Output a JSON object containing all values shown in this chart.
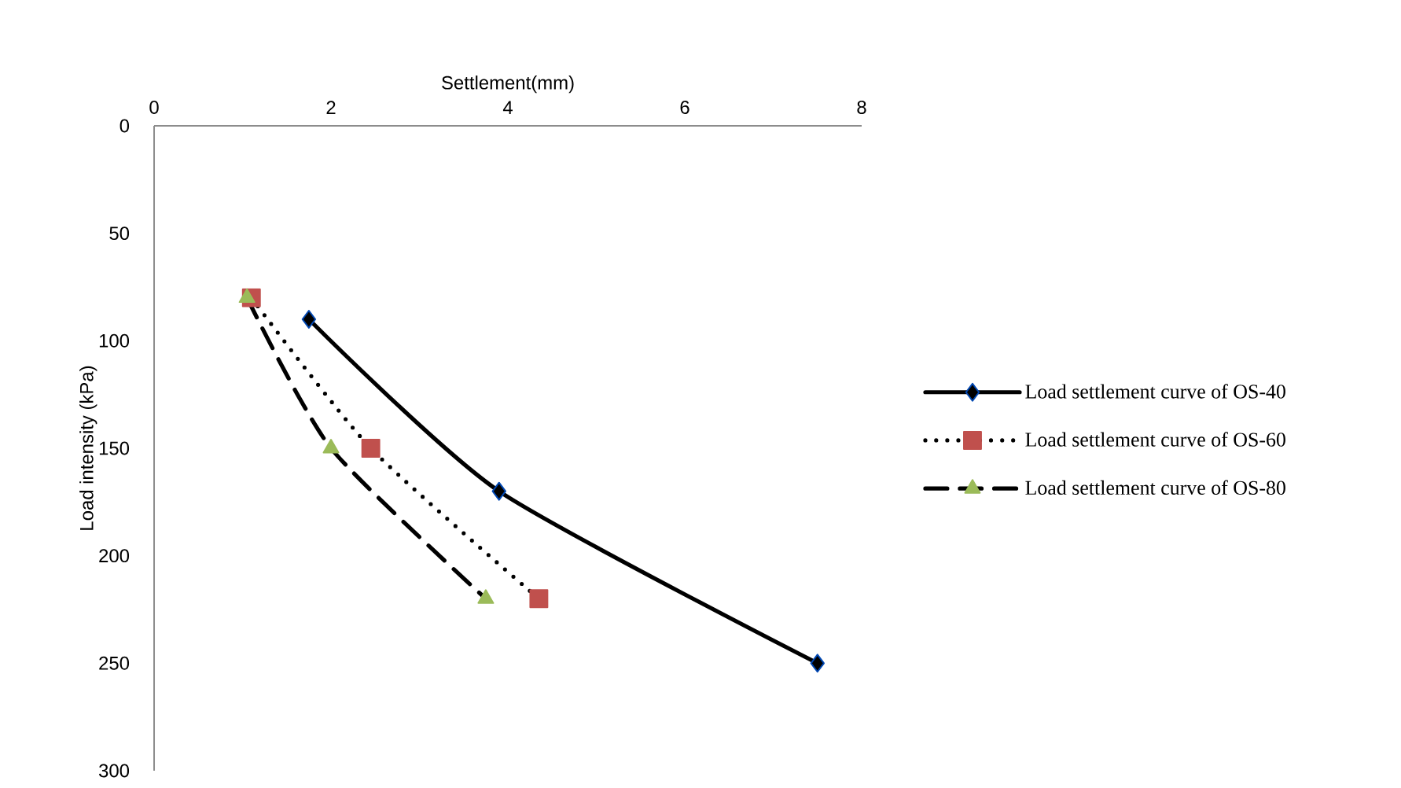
{
  "chart_data": {
    "type": "line",
    "xlabel": "Settlement(mm)",
    "ylabel": "Load intensity (kPa)",
    "xlim": [
      0,
      8
    ],
    "xticks": [
      0,
      2,
      4,
      6,
      8
    ],
    "ylim": [
      300,
      0
    ],
    "yticks": [
      0,
      50,
      100,
      150,
      200,
      250,
      300
    ],
    "legend": "right",
    "grid": false,
    "series": [
      {
        "name": "Load settlement curve of OS-40",
        "color": "#000000",
        "marker": "diamond",
        "line_style": "solid",
        "x": [
          1.75,
          3.9,
          7.5
        ],
        "values": [
          90,
          170,
          250
        ]
      },
      {
        "name": "Load settlement curve of OS-60",
        "color": "#c0504d",
        "marker": "square",
        "line_style": "dotted",
        "x": [
          1.1,
          2.45,
          4.35
        ],
        "values": [
          80,
          150,
          220
        ]
      },
      {
        "name": "Load settlement curve of OS-80",
        "color": "#9bbb59",
        "marker": "triangle",
        "line_style": "dashed",
        "x": [
          1.05,
          2.0,
          3.75
        ],
        "values": [
          80,
          150,
          220
        ]
      }
    ]
  }
}
